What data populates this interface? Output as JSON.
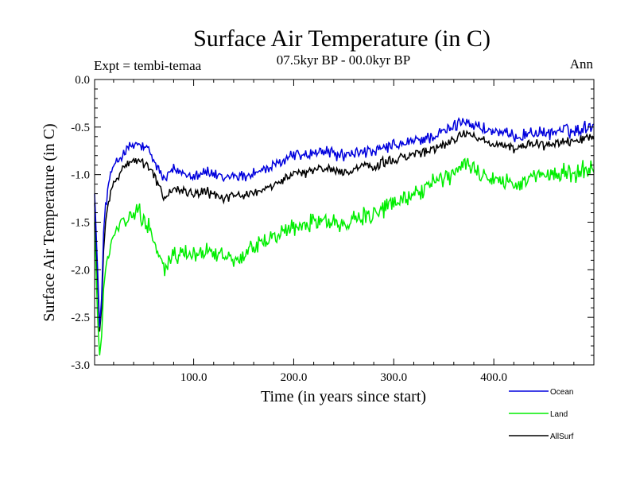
{
  "chart_data": {
    "type": "line",
    "title": "Surface Air Temperature (in C)",
    "subtitle": "07.5kyr BP - 00.0kyr BP",
    "experiment_label": "Expt = tembi-temaa",
    "season_label": "Ann",
    "xlabel": "Time (in years since start)",
    "ylabel": "Surface Air Temperature (in C)",
    "xlim": [
      1,
      500
    ],
    "ylim": [
      -3.0,
      0.0
    ],
    "x_ticks": [
      100,
      200,
      300,
      400
    ],
    "x_tick_labels": [
      "100.0",
      "200.0",
      "300.0",
      "400.0"
    ],
    "y_ticks": [
      -3.0,
      -2.5,
      -2.0,
      -1.5,
      -1.0,
      -0.5,
      0.0
    ],
    "y_tick_labels": [
      "-3.0",
      "-2.5",
      "-2.0",
      "-1.5",
      "-1.0",
      "-0.5",
      "0.0"
    ],
    "legend_position": "bottom-right",
    "series": [
      {
        "name": "Ocean",
        "color": "#0000dd",
        "points": [
          [
            1,
            -1.2
          ],
          [
            4,
            -2.0
          ],
          [
            6,
            -2.6
          ],
          [
            8,
            -2.3
          ],
          [
            10,
            -1.6
          ],
          [
            12,
            -1.3
          ],
          [
            15,
            -1.1
          ],
          [
            18,
            -0.95
          ],
          [
            22,
            -0.9
          ],
          [
            26,
            -0.82
          ],
          [
            30,
            -0.78
          ],
          [
            35,
            -0.72
          ],
          [
            40,
            -0.7
          ],
          [
            45,
            -0.68
          ],
          [
            50,
            -0.72
          ],
          [
            55,
            -0.75
          ],
          [
            60,
            -0.85
          ],
          [
            65,
            -0.95
          ],
          [
            70,
            -1.05
          ],
          [
            75,
            -1.0
          ],
          [
            80,
            -0.95
          ],
          [
            90,
            -0.98
          ],
          [
            100,
            -1.0
          ],
          [
            110,
            -0.97
          ],
          [
            120,
            -1.0
          ],
          [
            130,
            -1.05
          ],
          [
            140,
            -1.0
          ],
          [
            150,
            -1.02
          ],
          [
            160,
            -0.98
          ],
          [
            170,
            -0.95
          ],
          [
            180,
            -0.92
          ],
          [
            190,
            -0.85
          ],
          [
            200,
            -0.78
          ],
          [
            210,
            -0.8
          ],
          [
            220,
            -0.78
          ],
          [
            230,
            -0.75
          ],
          [
            240,
            -0.78
          ],
          [
            250,
            -0.8
          ],
          [
            260,
            -0.78
          ],
          [
            270,
            -0.75
          ],
          [
            280,
            -0.78
          ],
          [
            290,
            -0.72
          ],
          [
            300,
            -0.7
          ],
          [
            310,
            -0.68
          ],
          [
            320,
            -0.65
          ],
          [
            330,
            -0.62
          ],
          [
            340,
            -0.6
          ],
          [
            350,
            -0.55
          ],
          [
            360,
            -0.5
          ],
          [
            370,
            -0.42
          ],
          [
            380,
            -0.48
          ],
          [
            390,
            -0.52
          ],
          [
            400,
            -0.55
          ],
          [
            410,
            -0.58
          ],
          [
            420,
            -0.6
          ],
          [
            430,
            -0.58
          ],
          [
            440,
            -0.55
          ],
          [
            450,
            -0.58
          ],
          [
            460,
            -0.55
          ],
          [
            470,
            -0.52
          ],
          [
            480,
            -0.55
          ],
          [
            490,
            -0.5
          ],
          [
            500,
            -0.48
          ]
        ]
      },
      {
        "name": "Land",
        "color": "#00ee00",
        "points": [
          [
            1,
            -1.5
          ],
          [
            4,
            -2.5
          ],
          [
            6,
            -2.9
          ],
          [
            8,
            -2.7
          ],
          [
            10,
            -2.2
          ],
          [
            12,
            -2.0
          ],
          [
            15,
            -1.85
          ],
          [
            18,
            -1.7
          ],
          [
            22,
            -1.6
          ],
          [
            26,
            -1.55
          ],
          [
            30,
            -1.5
          ],
          [
            35,
            -1.45
          ],
          [
            40,
            -1.42
          ],
          [
            45,
            -1.4
          ],
          [
            50,
            -1.45
          ],
          [
            55,
            -1.55
          ],
          [
            60,
            -1.7
          ],
          [
            65,
            -1.85
          ],
          [
            70,
            -2.0
          ],
          [
            75,
            -1.95
          ],
          [
            80,
            -1.85
          ],
          [
            90,
            -1.8
          ],
          [
            100,
            -1.85
          ],
          [
            110,
            -1.8
          ],
          [
            120,
            -1.82
          ],
          [
            130,
            -1.85
          ],
          [
            140,
            -1.88
          ],
          [
            150,
            -1.85
          ],
          [
            160,
            -1.78
          ],
          [
            170,
            -1.7
          ],
          [
            180,
            -1.65
          ],
          [
            190,
            -1.6
          ],
          [
            200,
            -1.55
          ],
          [
            210,
            -1.52
          ],
          [
            220,
            -1.5
          ],
          [
            230,
            -1.48
          ],
          [
            240,
            -1.5
          ],
          [
            250,
            -1.52
          ],
          [
            260,
            -1.48
          ],
          [
            270,
            -1.45
          ],
          [
            280,
            -1.42
          ],
          [
            290,
            -1.35
          ],
          [
            300,
            -1.3
          ],
          [
            310,
            -1.25
          ],
          [
            320,
            -1.2
          ],
          [
            330,
            -1.15
          ],
          [
            340,
            -1.1
          ],
          [
            350,
            -1.05
          ],
          [
            360,
            -0.98
          ],
          [
            370,
            -0.9
          ],
          [
            380,
            -0.95
          ],
          [
            390,
            -1.0
          ],
          [
            400,
            -1.05
          ],
          [
            410,
            -1.08
          ],
          [
            420,
            -1.1
          ],
          [
            430,
            -1.05
          ],
          [
            440,
            -1.0
          ],
          [
            450,
            -1.02
          ],
          [
            460,
            -1.0
          ],
          [
            470,
            -0.98
          ],
          [
            480,
            -1.0
          ],
          [
            490,
            -0.95
          ],
          [
            500,
            -0.9
          ]
        ]
      },
      {
        "name": "AllSurf",
        "color": "#000000",
        "points": [
          [
            1,
            -1.3
          ],
          [
            4,
            -2.1
          ],
          [
            6,
            -2.65
          ],
          [
            8,
            -2.4
          ],
          [
            10,
            -1.8
          ],
          [
            12,
            -1.5
          ],
          [
            15,
            -1.3
          ],
          [
            18,
            -1.15
          ],
          [
            22,
            -1.05
          ],
          [
            26,
            -0.98
          ],
          [
            30,
            -0.93
          ],
          [
            35,
            -0.88
          ],
          [
            40,
            -0.86
          ],
          [
            45,
            -0.85
          ],
          [
            50,
            -0.88
          ],
          [
            55,
            -0.92
          ],
          [
            60,
            -1.02
          ],
          [
            65,
            -1.12
          ],
          [
            70,
            -1.25
          ],
          [
            75,
            -1.2
          ],
          [
            80,
            -1.15
          ],
          [
            90,
            -1.18
          ],
          [
            100,
            -1.2
          ],
          [
            110,
            -1.17
          ],
          [
            120,
            -1.2
          ],
          [
            130,
            -1.25
          ],
          [
            140,
            -1.22
          ],
          [
            150,
            -1.22
          ],
          [
            160,
            -1.18
          ],
          [
            170,
            -1.15
          ],
          [
            180,
            -1.12
          ],
          [
            190,
            -1.05
          ],
          [
            200,
            -0.98
          ],
          [
            210,
            -0.98
          ],
          [
            220,
            -0.96
          ],
          [
            230,
            -0.93
          ],
          [
            240,
            -0.96
          ],
          [
            250,
            -0.98
          ],
          [
            260,
            -0.95
          ],
          [
            270,
            -0.92
          ],
          [
            280,
            -0.93
          ],
          [
            290,
            -0.87
          ],
          [
            300,
            -0.85
          ],
          [
            310,
            -0.82
          ],
          [
            320,
            -0.79
          ],
          [
            330,
            -0.76
          ],
          [
            340,
            -0.73
          ],
          [
            350,
            -0.68
          ],
          [
            360,
            -0.63
          ],
          [
            370,
            -0.55
          ],
          [
            380,
            -0.6
          ],
          [
            390,
            -0.65
          ],
          [
            400,
            -0.68
          ],
          [
            410,
            -0.71
          ],
          [
            420,
            -0.73
          ],
          [
            430,
            -0.7
          ],
          [
            440,
            -0.67
          ],
          [
            450,
            -0.7
          ],
          [
            460,
            -0.67
          ],
          [
            470,
            -0.64
          ],
          [
            480,
            -0.67
          ],
          [
            490,
            -0.62
          ],
          [
            500,
            -0.6
          ]
        ]
      }
    ]
  }
}
